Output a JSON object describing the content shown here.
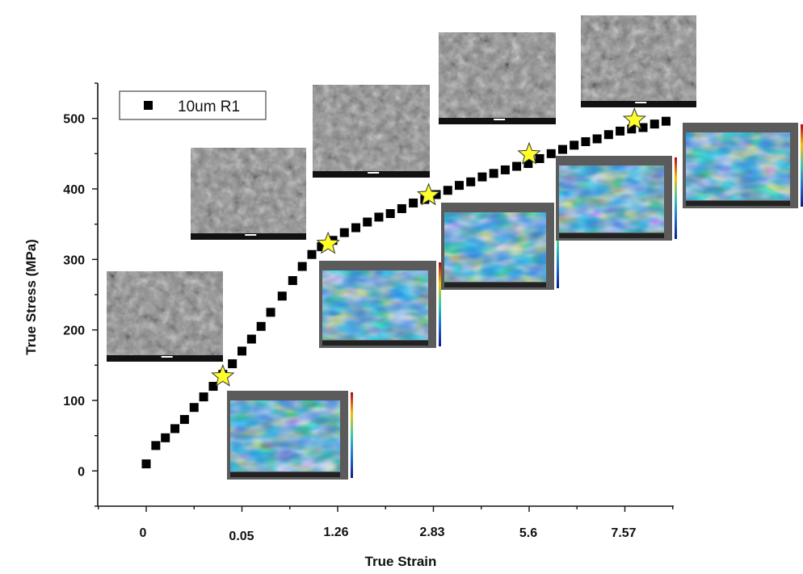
{
  "chart_data": {
    "type": "scatter",
    "title": "",
    "xlabel": "True Strain",
    "ylabel": "True Stress (MPa)",
    "ylim": [
      -50,
      550
    ],
    "y_ticks": [
      0,
      100,
      200,
      300,
      400,
      500
    ],
    "x_ticks": [
      "0",
      "0.05",
      "1.26",
      "2.83",
      "5.6",
      "7.57"
    ],
    "legend": {
      "position": "top-left",
      "label": "10um R1"
    },
    "series": [
      {
        "name": "10um R1",
        "marker": "square",
        "color": "#000000",
        "points": [
          [
            0.0,
            10
          ],
          [
            0.1,
            36
          ],
          [
            0.2,
            47
          ],
          [
            0.3,
            60
          ],
          [
            0.4,
            73
          ],
          [
            0.5,
            90
          ],
          [
            0.6,
            105
          ],
          [
            0.7,
            120
          ],
          [
            0.8,
            137
          ],
          [
            0.9,
            152
          ],
          [
            1.0,
            170
          ],
          [
            1.1,
            187
          ],
          [
            1.2,
            205
          ],
          [
            1.3,
            225
          ],
          [
            1.42,
            248
          ],
          [
            1.53,
            270
          ],
          [
            1.63,
            290
          ],
          [
            1.73,
            307
          ],
          [
            1.83,
            318
          ],
          [
            1.95,
            327
          ],
          [
            2.07,
            338
          ],
          [
            2.19,
            345
          ],
          [
            2.31,
            353
          ],
          [
            2.43,
            360
          ],
          [
            2.55,
            365
          ],
          [
            2.67,
            372
          ],
          [
            2.79,
            380
          ],
          [
            2.91,
            385
          ],
          [
            3.03,
            392
          ],
          [
            3.15,
            398
          ],
          [
            3.27,
            405
          ],
          [
            3.39,
            410
          ],
          [
            3.51,
            417
          ],
          [
            3.63,
            422
          ],
          [
            3.75,
            427
          ],
          [
            3.87,
            432
          ],
          [
            3.99,
            436
          ],
          [
            4.11,
            443
          ],
          [
            4.23,
            450
          ],
          [
            4.35,
            456
          ],
          [
            4.47,
            462
          ],
          [
            4.59,
            467
          ],
          [
            4.71,
            471
          ],
          [
            4.83,
            477
          ],
          [
            4.95,
            482
          ],
          [
            5.07,
            485
          ],
          [
            5.19,
            487
          ],
          [
            5.31,
            492
          ],
          [
            5.43,
            496
          ]
        ]
      }
    ],
    "highlighted_points": [
      [
        0.8,
        134
      ],
      [
        1.9,
        322
      ],
      [
        2.95,
        391
      ],
      [
        4.0,
        449
      ],
      [
        5.1,
        498
      ]
    ],
    "image_insets": [
      {
        "kind": "sem-micrograph"
      },
      {
        "kind": "sem-micrograph"
      },
      {
        "kind": "sem-micrograph"
      },
      {
        "kind": "sem-micrograph"
      },
      {
        "kind": "sem-micrograph"
      },
      {
        "kind": "strain-map"
      },
      {
        "kind": "strain-map"
      },
      {
        "kind": "strain-map"
      },
      {
        "kind": "strain-map"
      },
      {
        "kind": "strain-map"
      }
    ]
  }
}
